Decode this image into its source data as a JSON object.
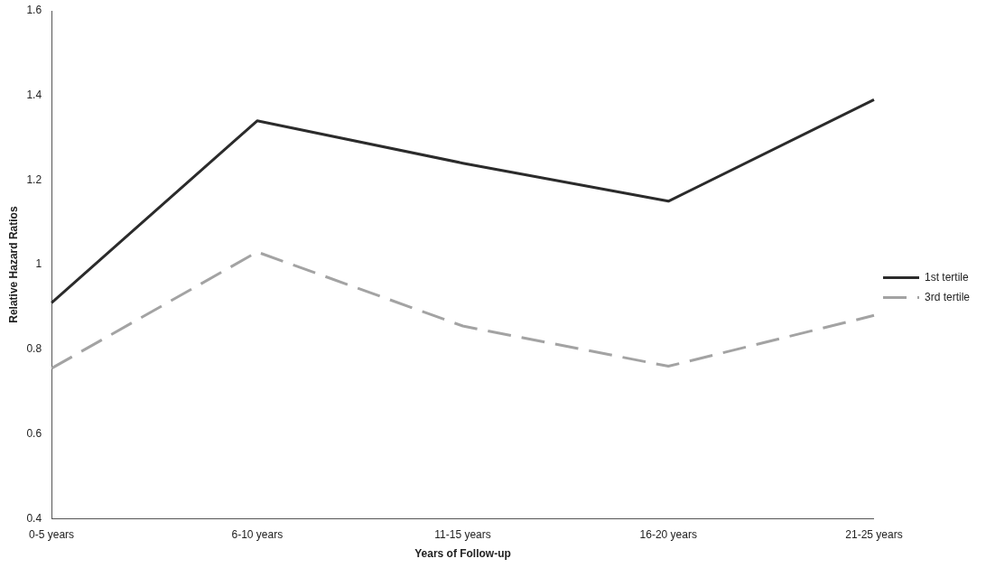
{
  "chart_data": {
    "type": "line",
    "xlabel": "Years of Follow-up",
    "ylabel": "Relative Hazard Ratios",
    "categories": [
      "0-5 years",
      "6-10 years",
      "11-15 years",
      "16-20 years",
      "21-25 years"
    ],
    "series": [
      {
        "name": "1st tertile",
        "color": "#2b2b2b",
        "values": [
          0.91,
          1.34,
          1.24,
          1.15,
          1.39
        ],
        "line_style": "solid"
      },
      {
        "name": "3rd tertile",
        "color": "#a3a3a3",
        "values": [
          0.755,
          1.03,
          0.855,
          0.76,
          0.88
        ],
        "line_style": "dashed"
      }
    ],
    "ylim": [
      0.4,
      1.6
    ],
    "yticks": [
      0.4,
      0.6,
      0.8,
      1,
      1.2,
      1.4,
      1.6
    ],
    "grid": false,
    "legend": "right",
    "marker": "none"
  }
}
